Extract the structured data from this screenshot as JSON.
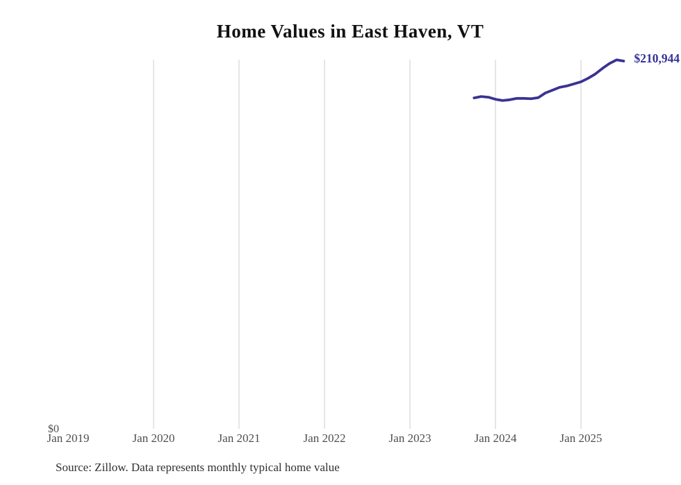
{
  "title": "Home Values in East Haven, VT",
  "source_note": "Source: Zillow. Data represents monthly typical home value",
  "chart_data": {
    "type": "line",
    "title": "Home Values in East Haven, VT",
    "series_name": "Monthly typical home value",
    "x": [
      "Oct 2023",
      "Nov 2023",
      "Dec 2023",
      "Jan 2024",
      "Feb 2024",
      "Mar 2024",
      "Apr 2024",
      "May 2024",
      "Jun 2024",
      "Jul 2024",
      "Aug 2024",
      "Sep 2024",
      "Oct 2024",
      "Nov 2024",
      "Dec 2024",
      "Jan 2025",
      "Feb 2025",
      "Mar 2025",
      "Apr 2025",
      "May 2025",
      "Jun 2025",
      "Jul 2025"
    ],
    "values": [
      189900,
      190700,
      190300,
      189100,
      188400,
      188800,
      189600,
      189600,
      189400,
      190000,
      192700,
      194300,
      195900,
      196700,
      197900,
      199100,
      201100,
      203500,
      206700,
      209500,
      211600,
      210944
    ],
    "end_label": "$210,944",
    "y_zero_label": "$0",
    "x_ticks": [
      {
        "label": "Jan 2019",
        "gridline": false
      },
      {
        "label": "Jan 2020",
        "gridline": true
      },
      {
        "label": "Jan 2021",
        "gridline": true
      },
      {
        "label": "Jan 2022",
        "gridline": true
      },
      {
        "label": "Jan 2023",
        "gridline": true
      },
      {
        "label": "Jan 2024",
        "gridline": true
      },
      {
        "label": "Jan 2025",
        "gridline": true
      }
    ],
    "ylim": [
      0,
      220000
    ],
    "grid": "vertical-only",
    "legend": "none",
    "colors": {
      "line": "#3a3393",
      "grid": "#cccccc",
      "tick_text": "#4d4d4d",
      "title_text": "#111111",
      "source_text": "#303030",
      "end_label_text": "#34329a",
      "background": "#ffffff"
    }
  }
}
